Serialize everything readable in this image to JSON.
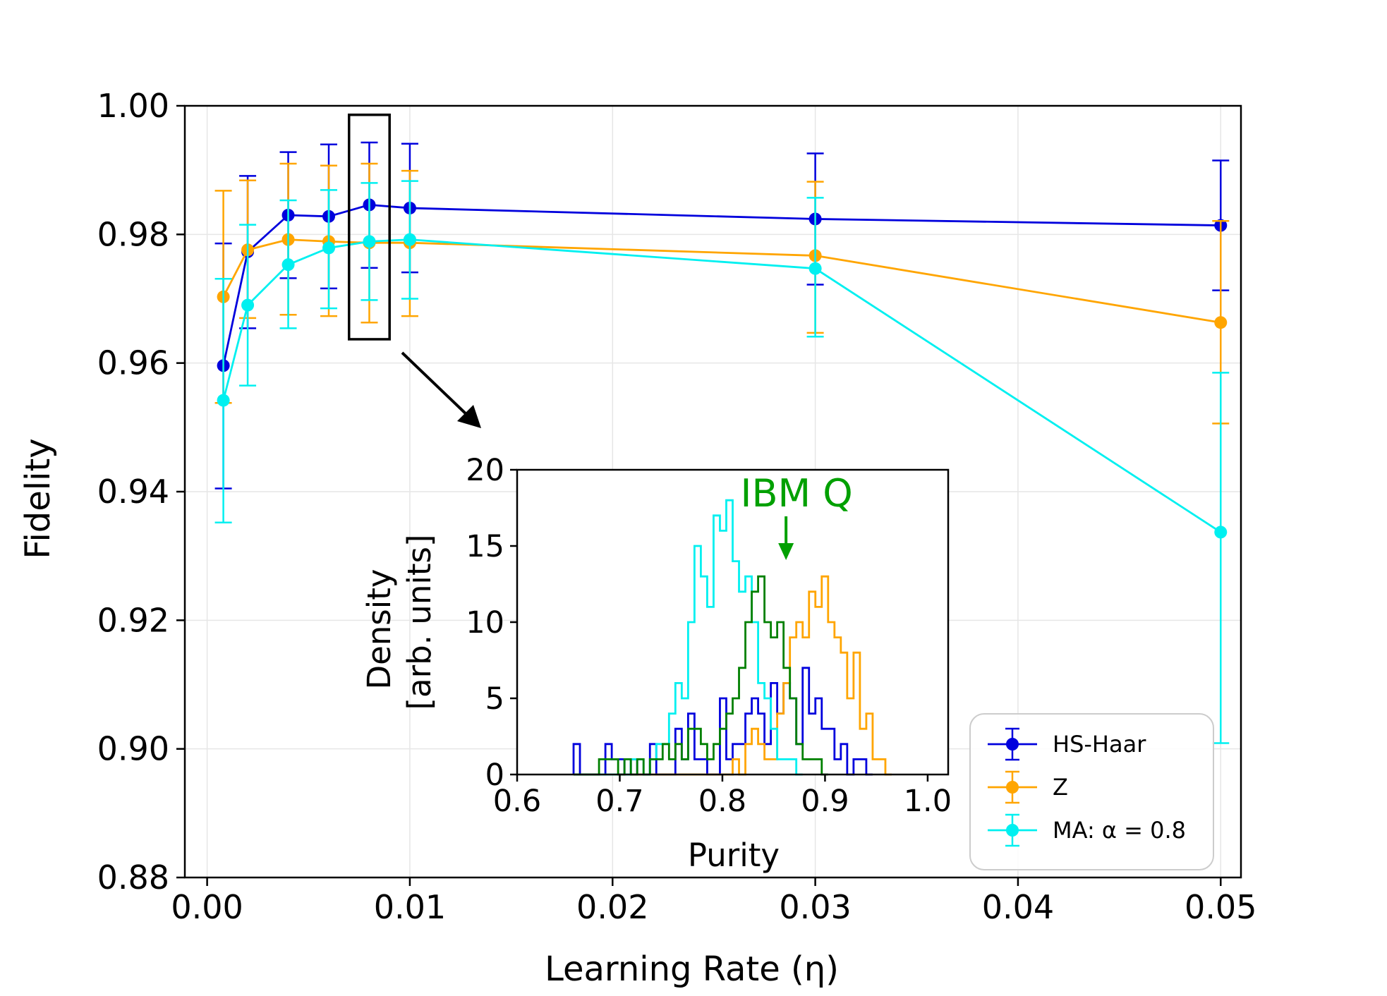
{
  "chart_data": [
    {
      "id": "main",
      "type": "line",
      "xlabel": "Learning Rate (η)",
      "ylabel": "Fidelity",
      "xlim": [
        -0.0011,
        0.051
      ],
      "ylim": [
        0.88,
        1.0
      ],
      "xticks": [
        0.0,
        0.01,
        0.02,
        0.03,
        0.04,
        0.05
      ],
      "xtick_labels": [
        "0.00",
        "0.01",
        "0.02",
        "0.03",
        "0.04",
        "0.05"
      ],
      "yticks": [
        0.88,
        0.9,
        0.92,
        0.94,
        0.96,
        0.98,
        1.0
      ],
      "ytick_labels": [
        "0.88",
        "0.90",
        "0.92",
        "0.94",
        "0.96",
        "0.98",
        "1.00"
      ],
      "grid": true,
      "legend_position": "bottom-right",
      "series": [
        {
          "name": "HS-Haar",
          "color": "#0000dd",
          "x": [
            0.0008,
            0.002,
            0.004,
            0.006,
            0.008,
            0.01,
            0.03,
            0.05
          ],
          "y": [
            0.9596,
            0.9773,
            0.983,
            0.9828,
            0.9846,
            0.9841,
            0.9824,
            0.9814
          ],
          "err_low": [
            0.9405,
            0.9654,
            0.9732,
            0.9716,
            0.9748,
            0.9741,
            0.9722,
            0.9713
          ],
          "err_high": [
            0.9786,
            0.9891,
            0.9928,
            0.994,
            0.9943,
            0.9941,
            0.9926,
            0.9915
          ]
        },
        {
          "name": "Z",
          "color": "#ffa500",
          "x": [
            0.0008,
            0.002,
            0.004,
            0.006,
            0.008,
            0.01,
            0.03,
            0.05
          ],
          "y": [
            0.9703,
            0.9776,
            0.9792,
            0.9789,
            0.9787,
            0.9787,
            0.9767,
            0.9663
          ],
          "err_low": [
            0.9538,
            0.967,
            0.9675,
            0.9673,
            0.9663,
            0.9673,
            0.9647,
            0.9506
          ],
          "err_high": [
            0.9868,
            0.9884,
            0.991,
            0.9907,
            0.991,
            0.9899,
            0.9882,
            0.9821
          ]
        },
        {
          "name": "MA: α = 0.8",
          "color": "#00f0f0",
          "x": [
            0.0008,
            0.002,
            0.004,
            0.006,
            0.008,
            0.01,
            0.03,
            0.05
          ],
          "y": [
            0.9542,
            0.969,
            0.9753,
            0.9779,
            0.9789,
            0.9792,
            0.9747,
            0.9337
          ],
          "err_low": [
            0.9352,
            0.9565,
            0.9654,
            0.9685,
            0.9698,
            0.97,
            0.9641,
            0.9009
          ],
          "err_high": [
            0.9731,
            0.9815,
            0.9853,
            0.9869,
            0.988,
            0.9883,
            0.9857,
            0.9585
          ]
        }
      ],
      "highlight_box": {
        "x_range": [
          0.007,
          0.009
        ],
        "y_range": [
          0.9637,
          0.9986
        ]
      }
    },
    {
      "id": "inset",
      "type": "histogram",
      "xlabel": "Purity",
      "ylabel": "Density\n[arb. units]",
      "ylabel_lines": [
        "Density",
        "[arb. units]"
      ],
      "xlim": [
        0.6,
        1.02
      ],
      "ylim": [
        0,
        20
      ],
      "xticks": [
        0.6,
        0.7,
        0.8,
        0.9,
        1.0
      ],
      "xtick_labels": [
        "0.6",
        "0.7",
        "0.8",
        "0.9",
        "1.0"
      ],
      "yticks": [
        0,
        5,
        10,
        15,
        20
      ],
      "ytick_labels": [
        "0",
        "5",
        "10",
        "15",
        "20"
      ],
      "annotation": {
        "text": "IBM Q",
        "color": "#00a000",
        "arrow_x": 0.862
      },
      "bin_start": 0.655,
      "bin_width": 0.0062,
      "series": [
        {
          "name": "HS-Haar",
          "color": "#0000dd",
          "densities": [
            2,
            0,
            0,
            0,
            0,
            2,
            1,
            1,
            0,
            1,
            0,
            0,
            2,
            0,
            0,
            0,
            3,
            1,
            4,
            1,
            1,
            0,
            0,
            5,
            1,
            2,
            2,
            4,
            5,
            4,
            2,
            6,
            4,
            6,
            5,
            2,
            7,
            4,
            5,
            3,
            3,
            1,
            2,
            0,
            1,
            1,
            0
          ]
        },
        {
          "name": "Z",
          "color": "#ffa500",
          "densities": [
            0,
            0,
            0,
            0,
            0,
            0,
            0,
            0,
            0,
            0,
            0,
            0,
            0,
            0,
            0,
            0,
            0,
            0,
            0,
            0,
            0,
            0,
            0,
            0,
            0,
            1,
            0,
            2,
            3,
            2,
            1,
            1,
            4,
            6,
            9,
            10,
            9,
            12,
            11,
            13,
            10,
            9,
            8,
            5,
            8,
            3,
            4,
            1,
            1,
            0
          ]
        },
        {
          "name": "MA: α = 0.8",
          "color": "#00f0f0",
          "densities": [
            0,
            0,
            0,
            0,
            0,
            0,
            0,
            0,
            0,
            1,
            1,
            0,
            1,
            2,
            2,
            4,
            6,
            5,
            10,
            15,
            13,
            11,
            17,
            16,
            18,
            14,
            12,
            13,
            10,
            6,
            5,
            3,
            1,
            1,
            1,
            0
          ]
        },
        {
          "name": "IBM Q",
          "color": "#008000",
          "densities": [
            0,
            0,
            0,
            0,
            1,
            1,
            1,
            0,
            1,
            0,
            1,
            0,
            1,
            1,
            2,
            1,
            2,
            1,
            3,
            3,
            2,
            1,
            2,
            3,
            4,
            5,
            7,
            10,
            12,
            13,
            10,
            9,
            10,
            7,
            5,
            2,
            1,
            1,
            1,
            0
          ]
        }
      ]
    }
  ]
}
